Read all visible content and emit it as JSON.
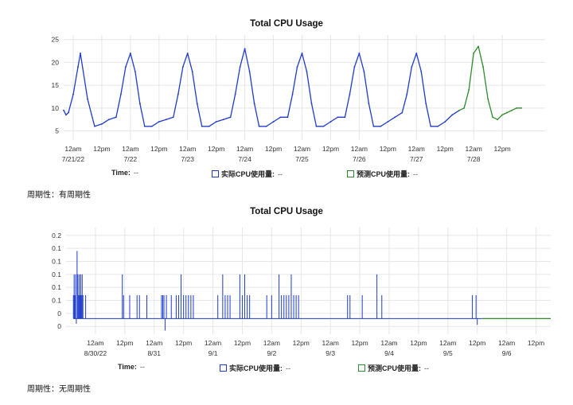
{
  "colors": {
    "actual": "#1f3ccc",
    "predicted": "#2e8b2e",
    "grid": "#e6e6e6"
  },
  "chart_data": [
    {
      "type": "line",
      "title": "Total CPU Usage",
      "ylim": [
        3,
        26
      ],
      "yticks": [
        5,
        10,
        15,
        20,
        25
      ],
      "x_range_hours": [
        -4,
        198
      ],
      "x_ticks": [
        {
          "h": 0,
          "l1": "12am",
          "l2": "7/21/22"
        },
        {
          "h": 12,
          "l1": "12pm",
          "l2": ""
        },
        {
          "h": 24,
          "l1": "12am",
          "l2": "7/22"
        },
        {
          "h": 36,
          "l1": "12pm",
          "l2": ""
        },
        {
          "h": 48,
          "l1": "12am",
          "l2": "7/23"
        },
        {
          "h": 60,
          "l1": "12pm",
          "l2": ""
        },
        {
          "h": 72,
          "l1": "12am",
          "l2": "7/24"
        },
        {
          "h": 84,
          "l1": "12pm",
          "l2": ""
        },
        {
          "h": 96,
          "l1": "12am",
          "l2": "7/25"
        },
        {
          "h": 108,
          "l1": "12pm",
          "l2": ""
        },
        {
          "h": 120,
          "l1": "12am",
          "l2": "7/26"
        },
        {
          "h": 132,
          "l1": "12pm",
          "l2": ""
        },
        {
          "h": 144,
          "l1": "12am",
          "l2": "7/27"
        },
        {
          "h": 156,
          "l1": "12pm",
          "l2": ""
        },
        {
          "h": 168,
          "l1": "12am",
          "l2": "7/28"
        },
        {
          "h": 180,
          "l1": "12pm",
          "l2": ""
        }
      ],
      "series": [
        {
          "name": "实际CPU使用量",
          "x": [
            -4,
            -3,
            -2,
            0,
            2,
            3,
            6,
            9,
            12,
            15,
            18,
            20,
            22,
            24,
            26,
            28,
            30,
            33,
            36,
            39,
            42,
            44,
            46,
            48,
            50,
            52,
            54,
            57,
            60,
            63,
            66,
            68,
            70,
            72,
            74,
            76,
            78,
            81,
            84,
            87,
            90,
            92,
            94,
            96,
            98,
            100,
            102,
            105,
            108,
            111,
            114,
            116,
            118,
            120,
            122,
            124,
            126,
            129,
            132,
            135,
            138,
            140,
            142,
            144,
            146,
            148,
            150,
            153,
            156,
            159,
            162
          ],
          "y": [
            9.5,
            8.5,
            9,
            13,
            19,
            22,
            12,
            6,
            6.5,
            7.5,
            8,
            13,
            19,
            22,
            18,
            11,
            6,
            6,
            7,
            7.5,
            8,
            13,
            19,
            22,
            18,
            11,
            6,
            6,
            7,
            7.5,
            8,
            13,
            19,
            23,
            18,
            11,
            6,
            6,
            7,
            8,
            8,
            13,
            19,
            22,
            18,
            11,
            6,
            6,
            7,
            8,
            8,
            13,
            19,
            22,
            18,
            11,
            6,
            6,
            7,
            8,
            9,
            13,
            19,
            22,
            18,
            11,
            6,
            6,
            7,
            8.5,
            9.5
          ]
        },
        {
          "name": "预测CPU使用量",
          "x": [
            162,
            164,
            166,
            168,
            170,
            172,
            174,
            176,
            178,
            180,
            182,
            184,
            186,
            188
          ],
          "y": [
            9.5,
            10,
            14,
            22,
            23.5,
            19,
            12,
            8,
            7.5,
            8.5,
            9,
            9.5,
            10,
            10
          ]
        }
      ]
    },
    {
      "type": "line",
      "title": "Total CPU Usage",
      "ylim": [
        -0.015,
        0.19
      ],
      "yticks": [
        0,
        0.025,
        0.05,
        0.075,
        0.1,
        0.125,
        0.15,
        0.175
      ],
      "ytick_labels": [
        "0",
        "0",
        "0.1",
        "0.1",
        "0.1",
        "0.1",
        "0.1",
        "0.2"
      ],
      "x_range_hours": [
        -12,
        186
      ],
      "x_ticks": [
        {
          "h": 0,
          "l1": "12am",
          "l2": "8/30/22"
        },
        {
          "h": 12,
          "l1": "12pm",
          "l2": ""
        },
        {
          "h": 24,
          "l1": "12am",
          "l2": "8/31"
        },
        {
          "h": 36,
          "l1": "12pm",
          "l2": ""
        },
        {
          "h": 48,
          "l1": "12am",
          "l2": "9/1"
        },
        {
          "h": 60,
          "l1": "12pm",
          "l2": ""
        },
        {
          "h": 72,
          "l1": "12am",
          "l2": "9/2"
        },
        {
          "h": 84,
          "l1": "12pm",
          "l2": ""
        },
        {
          "h": 96,
          "l1": "12am",
          "l2": "9/3"
        },
        {
          "h": 108,
          "l1": "12pm",
          "l2": ""
        },
        {
          "h": 120,
          "l1": "12am",
          "l2": "9/4"
        },
        {
          "h": 132,
          "l1": "12pm",
          "l2": ""
        },
        {
          "h": 144,
          "l1": "12am",
          "l2": "9/5"
        },
        {
          "h": 156,
          "l1": "12pm",
          "l2": ""
        },
        {
          "h": 168,
          "l1": "12am",
          "l2": "9/6"
        },
        {
          "h": 180,
          "l1": "12pm",
          "l2": ""
        }
      ],
      "series": [
        {
          "name": "实际CPU使用量",
          "baseline": 0.015,
          "x_range": [
            -9,
            158
          ],
          "spikes": [
            {
              "x": -9,
              "y": 0.06
            },
            {
              "x": -8.7,
              "y": 0.1
            },
            {
              "x": -8.4,
              "y": 0.06
            },
            {
              "x": -8.1,
              "y": 0.1
            },
            {
              "x": -7.8,
              "y": 0.005
            },
            {
              "x": -7.5,
              "y": 0.145
            },
            {
              "x": -7.2,
              "y": 0.1
            },
            {
              "x": -6.9,
              "y": 0.06
            },
            {
              "x": -6.6,
              "y": 0.1
            },
            {
              "x": -6.3,
              "y": 0.06
            },
            {
              "x": -6,
              "y": 0.1
            },
            {
              "x": -5.7,
              "y": 0.06
            },
            {
              "x": -5.4,
              "y": 0.1
            },
            {
              "x": -5.1,
              "y": 0.06
            },
            {
              "x": -4,
              "y": 0.06
            },
            {
              "x": 11,
              "y": 0.1
            },
            {
              "x": 11.5,
              "y": 0.06
            },
            {
              "x": 14,
              "y": 0.06
            },
            {
              "x": 17,
              "y": 0.06
            },
            {
              "x": 18,
              "y": 0.06
            },
            {
              "x": 21,
              "y": 0.06
            },
            {
              "x": 27,
              "y": 0.06
            },
            {
              "x": 27.5,
              "y": 0.06
            },
            {
              "x": 28,
              "y": 0.06
            },
            {
              "x": 28.5,
              "y": -0.008
            },
            {
              "x": 29,
              "y": 0.06
            },
            {
              "x": 31,
              "y": 0.06
            },
            {
              "x": 33,
              "y": 0.06
            },
            {
              "x": 34,
              "y": 0.06
            },
            {
              "x": 35,
              "y": 0.1
            },
            {
              "x": 36,
              "y": 0.06
            },
            {
              "x": 37,
              "y": 0.06
            },
            {
              "x": 38,
              "y": 0.06
            },
            {
              "x": 39,
              "y": 0.06
            },
            {
              "x": 40,
              "y": 0.06
            },
            {
              "x": 50,
              "y": 0.06
            },
            {
              "x": 52,
              "y": 0.1
            },
            {
              "x": 53,
              "y": 0.06
            },
            {
              "x": 54,
              "y": 0.06
            },
            {
              "x": 55,
              "y": 0.06
            },
            {
              "x": 59,
              "y": 0.1
            },
            {
              "x": 60,
              "y": 0.06
            },
            {
              "x": 61,
              "y": 0.1
            },
            {
              "x": 62,
              "y": 0.06
            },
            {
              "x": 63,
              "y": 0.06
            },
            {
              "x": 70,
              "y": 0.06
            },
            {
              "x": 72,
              "y": 0.06
            },
            {
              "x": 75,
              "y": 0.1
            },
            {
              "x": 76,
              "y": 0.06
            },
            {
              "x": 77,
              "y": 0.06
            },
            {
              "x": 78,
              "y": 0.06
            },
            {
              "x": 79,
              "y": 0.06
            },
            {
              "x": 80,
              "y": 0.1
            },
            {
              "x": 81,
              "y": 0.06
            },
            {
              "x": 82,
              "y": 0.06
            },
            {
              "x": 83,
              "y": 0.06
            },
            {
              "x": 103,
              "y": 0.06
            },
            {
              "x": 104,
              "y": 0.06
            },
            {
              "x": 109,
              "y": 0.06
            },
            {
              "x": 115,
              "y": 0.1
            },
            {
              "x": 117,
              "y": 0.06
            },
            {
              "x": 154,
              "y": 0.06
            },
            {
              "x": 155.5,
              "y": 0.06
            },
            {
              "x": 156,
              "y": 0.003
            }
          ]
        },
        {
          "name": "预测CPU使用量",
          "x": [
            158,
            186
          ],
          "y": [
            0.015,
            0.015
          ]
        }
      ]
    }
  ],
  "legend": {
    "time_label": "Time:",
    "time_value": "--",
    "actual_label": "实际CPU使用量:",
    "actual_value": "--",
    "predicted_label": "预测CPU使用量:",
    "predicted_value": "--"
  },
  "notes": [
    "周期性：有周期性",
    "周期性：无周期性"
  ]
}
